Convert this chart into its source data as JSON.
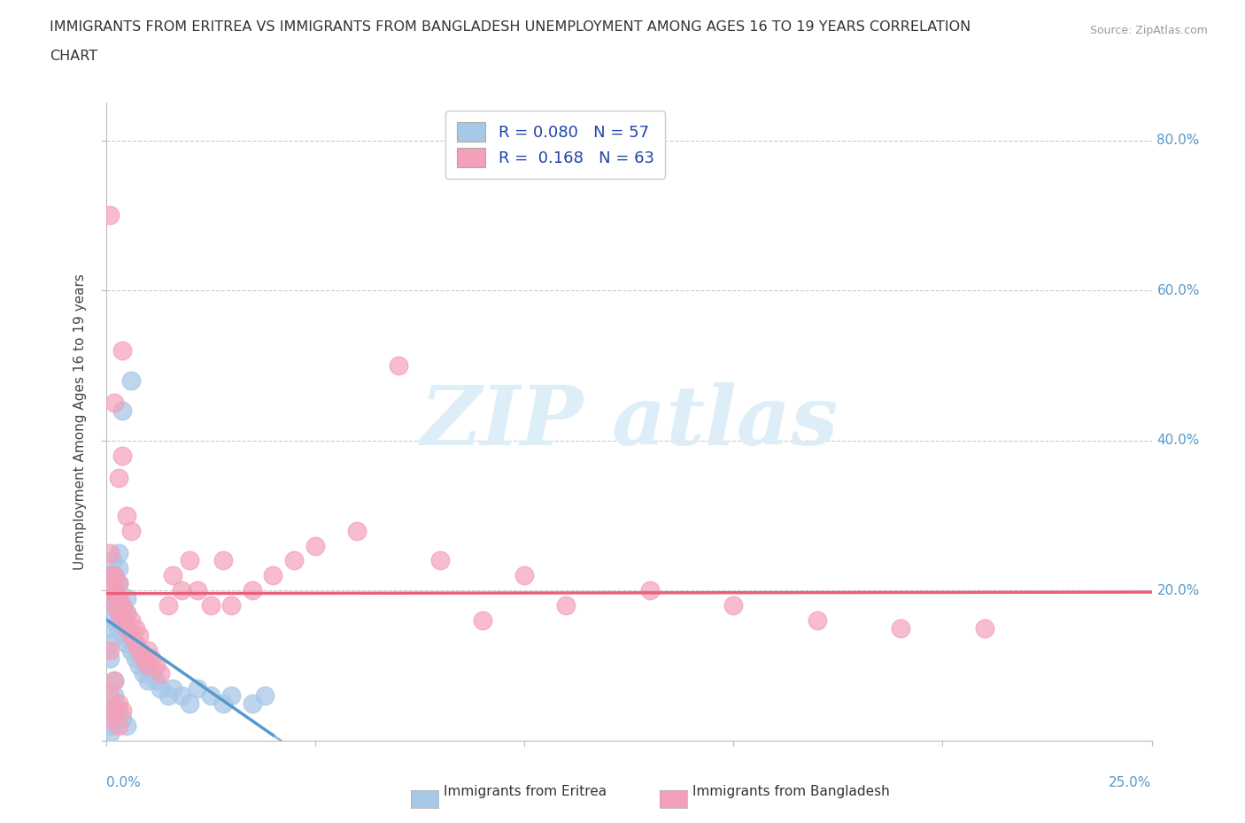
{
  "title_line1": "IMMIGRANTS FROM ERITREA VS IMMIGRANTS FROM BANGLADESH UNEMPLOYMENT AMONG AGES 16 TO 19 YEARS CORRELATION",
  "title_line2": "CHART",
  "source_text": "Source: ZipAtlas.com",
  "ylabel": "Unemployment Among Ages 16 to 19 years",
  "R1": 0.08,
  "N1": 57,
  "R2": 0.168,
  "N2": 63,
  "color1": "#a8c8e8",
  "color2": "#f4a0b8",
  "line_color1_solid": "#5599cc",
  "line_color1_dash": "#88bbdd",
  "line_color2": "#e8607a",
  "watermark_color": "#ddeef8",
  "y_label_color": "#5599cc",
  "xlim": [
    0,
    0.25
  ],
  "ylim": [
    0,
    0.85
  ],
  "x_ticks": [
    0.0,
    0.05,
    0.1,
    0.15,
    0.2,
    0.25
  ],
  "y_ticks": [
    0.0,
    0.2,
    0.4,
    0.6,
    0.8
  ],
  "legend_label1": "Immigrants from Eritrea",
  "legend_label2": "Immigrants from Bangladesh",
  "scatter_eritrea_x": [
    0.0005,
    0.001,
    0.001,
    0.0015,
    0.002,
    0.002,
    0.002,
    0.003,
    0.003,
    0.003,
    0.003,
    0.003,
    0.004,
    0.004,
    0.004,
    0.004,
    0.005,
    0.005,
    0.005,
    0.005,
    0.006,
    0.006,
    0.006,
    0.007,
    0.007,
    0.008,
    0.008,
    0.009,
    0.009,
    0.01,
    0.01,
    0.011,
    0.012,
    0.013,
    0.015,
    0.016,
    0.018,
    0.02,
    0.022,
    0.025,
    0.028,
    0.03,
    0.035,
    0.038,
    0.002,
    0.003,
    0.001,
    0.001,
    0.001,
    0.002,
    0.002,
    0.003,
    0.004,
    0.005,
    0.001,
    0.001,
    0.001
  ],
  "scatter_eritrea_y": [
    0.18,
    0.2,
    0.22,
    0.24,
    0.16,
    0.18,
    0.2,
    0.15,
    0.17,
    0.19,
    0.21,
    0.23,
    0.14,
    0.16,
    0.18,
    0.44,
    0.13,
    0.15,
    0.17,
    0.19,
    0.12,
    0.14,
    0.48,
    0.11,
    0.13,
    0.1,
    0.12,
    0.09,
    0.11,
    0.08,
    0.1,
    0.09,
    0.08,
    0.07,
    0.06,
    0.07,
    0.06,
    0.05,
    0.07,
    0.06,
    0.05,
    0.06,
    0.05,
    0.06,
    0.22,
    0.25,
    0.15,
    0.13,
    0.11,
    0.08,
    0.06,
    0.04,
    0.03,
    0.02,
    0.04,
    0.02,
    0.01
  ],
  "scatter_bangladesh_x": [
    0.0005,
    0.001,
    0.001,
    0.001,
    0.002,
    0.002,
    0.002,
    0.002,
    0.003,
    0.003,
    0.003,
    0.003,
    0.004,
    0.004,
    0.004,
    0.004,
    0.005,
    0.005,
    0.005,
    0.006,
    0.006,
    0.006,
    0.007,
    0.007,
    0.008,
    0.008,
    0.009,
    0.01,
    0.01,
    0.011,
    0.012,
    0.013,
    0.015,
    0.016,
    0.018,
    0.02,
    0.022,
    0.025,
    0.028,
    0.03,
    0.035,
    0.04,
    0.045,
    0.05,
    0.06,
    0.07,
    0.08,
    0.09,
    0.1,
    0.11,
    0.13,
    0.15,
    0.17,
    0.19,
    0.21,
    0.001,
    0.002,
    0.003,
    0.004,
    0.001,
    0.002,
    0.003,
    0.001
  ],
  "scatter_bangladesh_y": [
    0.2,
    0.22,
    0.25,
    0.7,
    0.18,
    0.2,
    0.22,
    0.45,
    0.17,
    0.19,
    0.21,
    0.35,
    0.16,
    0.18,
    0.38,
    0.52,
    0.15,
    0.17,
    0.3,
    0.14,
    0.16,
    0.28,
    0.13,
    0.15,
    0.12,
    0.14,
    0.11,
    0.1,
    0.12,
    0.11,
    0.1,
    0.09,
    0.18,
    0.22,
    0.2,
    0.24,
    0.2,
    0.18,
    0.24,
    0.18,
    0.2,
    0.22,
    0.24,
    0.26,
    0.28,
    0.5,
    0.24,
    0.16,
    0.22,
    0.18,
    0.2,
    0.18,
    0.16,
    0.15,
    0.15,
    0.12,
    0.08,
    0.05,
    0.04,
    0.06,
    0.04,
    0.02,
    0.03
  ]
}
